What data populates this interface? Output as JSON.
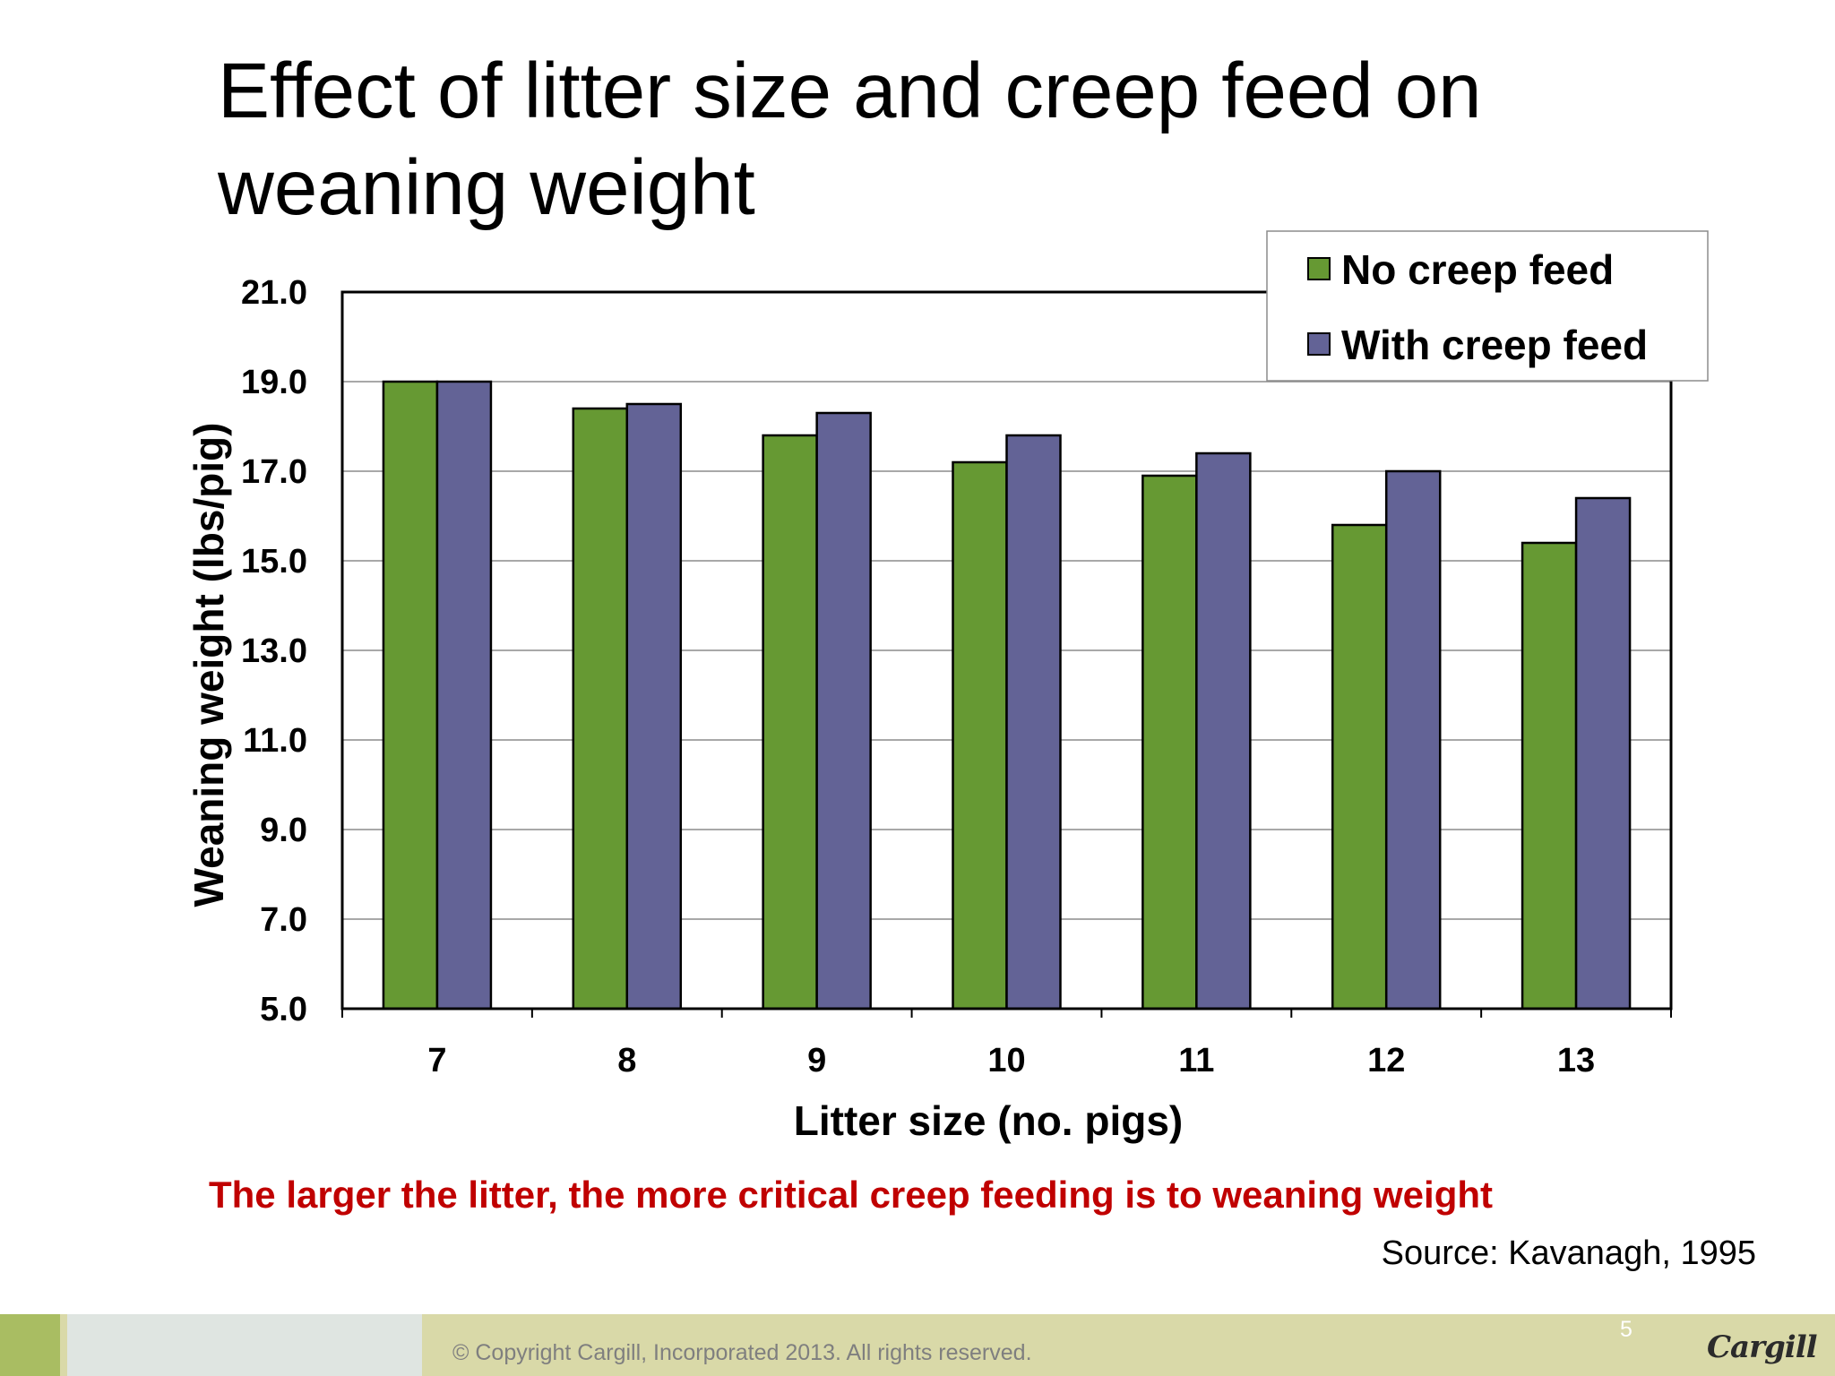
{
  "slide": {
    "title_line1": "Effect of litter size and creep feed on",
    "title_line2": "weaning weight",
    "takeaway": "The larger the litter, the more critical creep feeding is to weaning weight",
    "source": "Source: Kavanagh, 1995",
    "footer": {
      "copyright": "© Copyright Cargill, Incorporated 2013. All rights reserved.",
      "page_number": "5",
      "logo_text": "Cargill"
    }
  },
  "colors": {
    "no_creep": "#669933",
    "with_creep": "#636396",
    "takeaway_text": "#c00000",
    "footer_bar": "#d9d9a8"
  },
  "chart_data": {
    "type": "bar",
    "categories": [
      "7",
      "8",
      "9",
      "10",
      "11",
      "12",
      "13"
    ],
    "series": [
      {
        "name": "No creep feed",
        "values": [
          19.0,
          18.4,
          17.8,
          17.2,
          16.9,
          15.8,
          15.4
        ]
      },
      {
        "name": "With creep feed",
        "values": [
          19.0,
          18.5,
          18.3,
          17.8,
          17.4,
          17.0,
          16.4
        ]
      }
    ],
    "title": "",
    "xlabel": "Litter size (no. pigs)",
    "ylabel": "Weaning weight (lbs/pig)",
    "ylim": [
      5.0,
      21.0
    ],
    "yticks": [
      "5.0",
      "7.0",
      "9.0",
      "11.0",
      "13.0",
      "15.0",
      "17.0",
      "19.0",
      "21.0"
    ],
    "grid": true,
    "legend_position": "top-right"
  }
}
